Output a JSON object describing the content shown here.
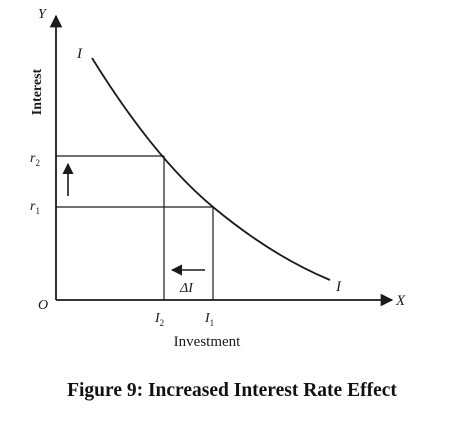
{
  "diagram": {
    "axis_y_letter": "Y",
    "axis_x_letter": "X",
    "origin_label": "O",
    "y_axis_title": "Interest",
    "x_axis_title": "Investment",
    "curve_label_top": "I",
    "curve_label_bottom": "I",
    "r2": {
      "base": "r",
      "sub": "2"
    },
    "r1": {
      "base": "r",
      "sub": "1"
    },
    "i2": {
      "base": "I",
      "sub": "2"
    },
    "i1": {
      "base": "I",
      "sub": "1"
    },
    "delta_label": "ΔI",
    "arrow_up": "increase in interest rate",
    "arrow_left": "decrease in investment"
  },
  "caption": "Figure 9: Increased Interest Rate Effect",
  "colors": {
    "ink": "#1a1a1a",
    "background": "#ffffff"
  }
}
